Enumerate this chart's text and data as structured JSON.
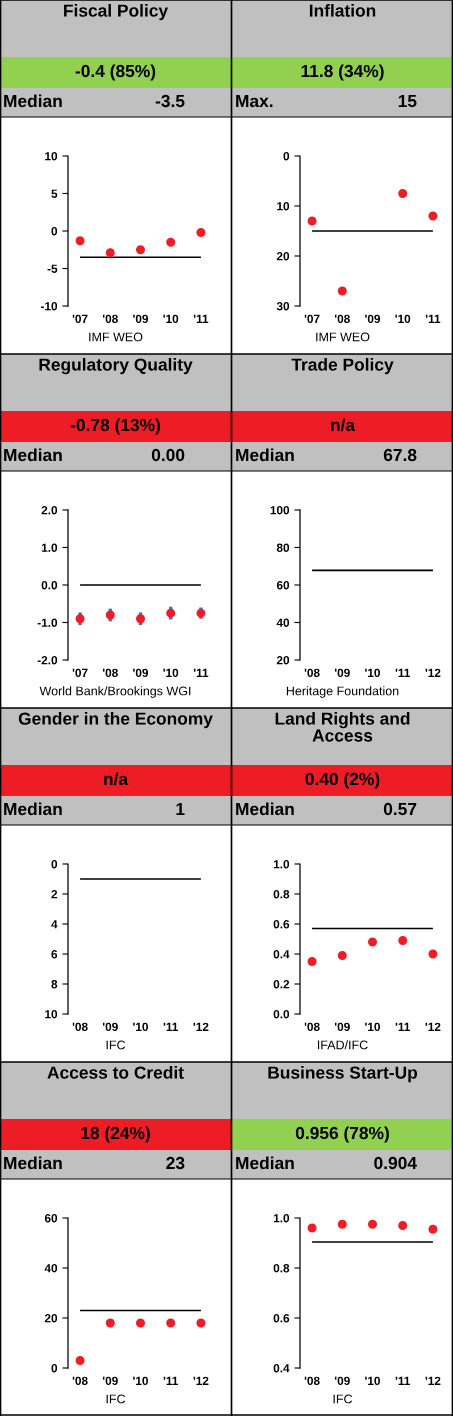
{
  "chart_data": [
    {
      "type": "scatter",
      "title": "Fiscal Policy",
      "subtitle": "-0.4 (85%)",
      "categories": [
        "'07",
        "'08",
        "'09",
        "'10",
        "'11"
      ],
      "series": [
        {
          "color": "#ee1c25",
          "values": [
            -1.3,
            -2.9,
            -2.5,
            -1.5,
            -0.2
          ]
        }
      ],
      "marker": "circle",
      "ylim": [
        -10,
        10
      ],
      "yticks": [
        -10,
        -5,
        0,
        5,
        10
      ],
      "grid": false,
      "ref_lines": [
        {
          "axis": "y",
          "value": -3.5,
          "label": "Median",
          "color": "#000000"
        }
      ],
      "annotations": [
        "-3.5",
        "IMF WEO"
      ]
    },
    {
      "type": "scatter",
      "title": "Inflation",
      "subtitle": "11.8 (34%)",
      "categories": [
        "'07",
        "'08",
        "'09",
        "'10",
        "'11"
      ],
      "series": [
        {
          "color": "#ee1c25",
          "values": [
            13,
            27,
            null,
            7.5,
            12
          ]
        }
      ],
      "marker": "circle",
      "ylim": [
        30,
        0
      ],
      "yticks": [
        0,
        10,
        20,
        30
      ],
      "grid": false,
      "ref_lines": [
        {
          "axis": "y",
          "value": 15,
          "label": "Max.",
          "color": "#000000"
        }
      ],
      "annotations": [
        "15",
        "IMF WEO"
      ]
    },
    {
      "type": "scatter",
      "title": "Regulatory Quality",
      "subtitle": "-0.78 (13%)",
      "categories": [
        "'07",
        "'08",
        "'09",
        "'10",
        "'11"
      ],
      "series": [
        {
          "color": "#ee1c25",
          "values": [
            -0.9,
            -0.8,
            -0.9,
            -0.75,
            -0.75
          ],
          "errors": [
            0.17,
            0.17,
            0.17,
            0.17,
            0.15
          ]
        }
      ],
      "marker": "circle",
      "ylim": [
        -2,
        2
      ],
      "yticks": [
        {
          "value": -2,
          "label": "-2.0"
        },
        {
          "value": -1,
          "label": "-1.0"
        },
        {
          "value": 0,
          "label": "0.0"
        },
        {
          "value": 1,
          "label": "1.0"
        },
        {
          "value": 2,
          "label": "2.0"
        }
      ],
      "grid": false,
      "ref_lines": [
        {
          "axis": "y",
          "value": 0,
          "label": "Median",
          "color": "#000000"
        }
      ],
      "annotations": [
        "0.00",
        "World Bank/Brookings WGI"
      ]
    },
    {
      "type": "scatter",
      "title": "Trade Policy",
      "subtitle": "n/a",
      "categories": [
        "'08",
        "'09",
        "'10",
        "'11",
        "'12"
      ],
      "ylim": [
        20,
        100
      ],
      "yticks": [
        20,
        40,
        60,
        80,
        100
      ],
      "grid": false,
      "ref_lines": [
        {
          "axis": "y",
          "value": 67.8,
          "label": "Median",
          "color": "#000000"
        }
      ],
      "annotations": [
        "67.8",
        "Heritage Foundation"
      ]
    },
    {
      "type": "scatter",
      "title": "Gender in the Economy",
      "subtitle": "n/a",
      "categories": [
        "'08",
        "'09",
        "'10",
        "'11",
        "'12"
      ],
      "ylim": [
        10,
        0
      ],
      "yticks": [
        0,
        2,
        4,
        6,
        8,
        10
      ],
      "grid": false,
      "ref_lines": [
        {
          "axis": "y",
          "value": 1,
          "label": "Median",
          "color": "#000000"
        }
      ],
      "annotations": [
        "1",
        "IFC"
      ]
    },
    {
      "type": "scatter",
      "title": "Land Rights and Access",
      "subtitle": "0.40 (2%)",
      "categories": [
        "'08",
        "'09",
        "'10",
        "'11",
        "'12"
      ],
      "series": [
        {
          "color": "#ee1c25",
          "values": [
            0.35,
            0.39,
            0.48,
            0.49,
            0.4
          ]
        }
      ],
      "marker": "circle",
      "ylim": [
        0,
        1
      ],
      "yticks": [
        {
          "value": 0,
          "label": "0.0"
        },
        {
          "value": 0.2,
          "label": "0.2"
        },
        {
          "value": 0.4,
          "label": "0.4"
        },
        {
          "value": 0.6,
          "label": "0.6"
        },
        {
          "value": 0.8,
          "label": "0.8"
        },
        {
          "value": 1,
          "label": "1.0"
        }
      ],
      "grid": false,
      "ref_lines": [
        {
          "axis": "y",
          "value": 0.57,
          "label": "Median",
          "color": "#000000"
        }
      ],
      "annotations": [
        "0.57",
        "IFAD/IFC"
      ]
    },
    {
      "type": "scatter",
      "title": "Access to Credit",
      "subtitle": "18 (24%)",
      "categories": [
        "'08",
        "'09",
        "'10",
        "'11",
        "'12"
      ],
      "series": [
        {
          "color": "#ee1c25",
          "values": [
            3,
            18,
            18,
            18,
            18
          ]
        }
      ],
      "marker": "circle",
      "ylim": [
        0,
        60
      ],
      "yticks": [
        0,
        20,
        40,
        60
      ],
      "grid": false,
      "ref_lines": [
        {
          "axis": "y",
          "value": 23,
          "label": "Median",
          "color": "#000000"
        }
      ],
      "annotations": [
        "23",
        "IFC"
      ]
    },
    {
      "type": "scatter",
      "title": "Business Start-Up",
      "subtitle": "0.956 (78%)",
      "categories": [
        "'08",
        "'09",
        "'10",
        "'11",
        "'12"
      ],
      "series": [
        {
          "color": "#ee1c25",
          "values": [
            0.96,
            0.975,
            0.975,
            0.97,
            0.955
          ]
        }
      ],
      "marker": "circle",
      "ylim": [
        0.4,
        1.0
      ],
      "yticks": [
        {
          "value": 0.4,
          "label": "0.4"
        },
        {
          "value": 0.6,
          "label": "0.6"
        },
        {
          "value": 0.8,
          "label": "0.8"
        },
        {
          "value": 1.0,
          "label": "1.0"
        }
      ],
      "grid": false,
      "ref_lines": [
        {
          "axis": "y",
          "value": 0.904,
          "label": "Median",
          "color": "#000000"
        }
      ],
      "annotations": [
        "0.904",
        "IFC"
      ]
    }
  ]
}
